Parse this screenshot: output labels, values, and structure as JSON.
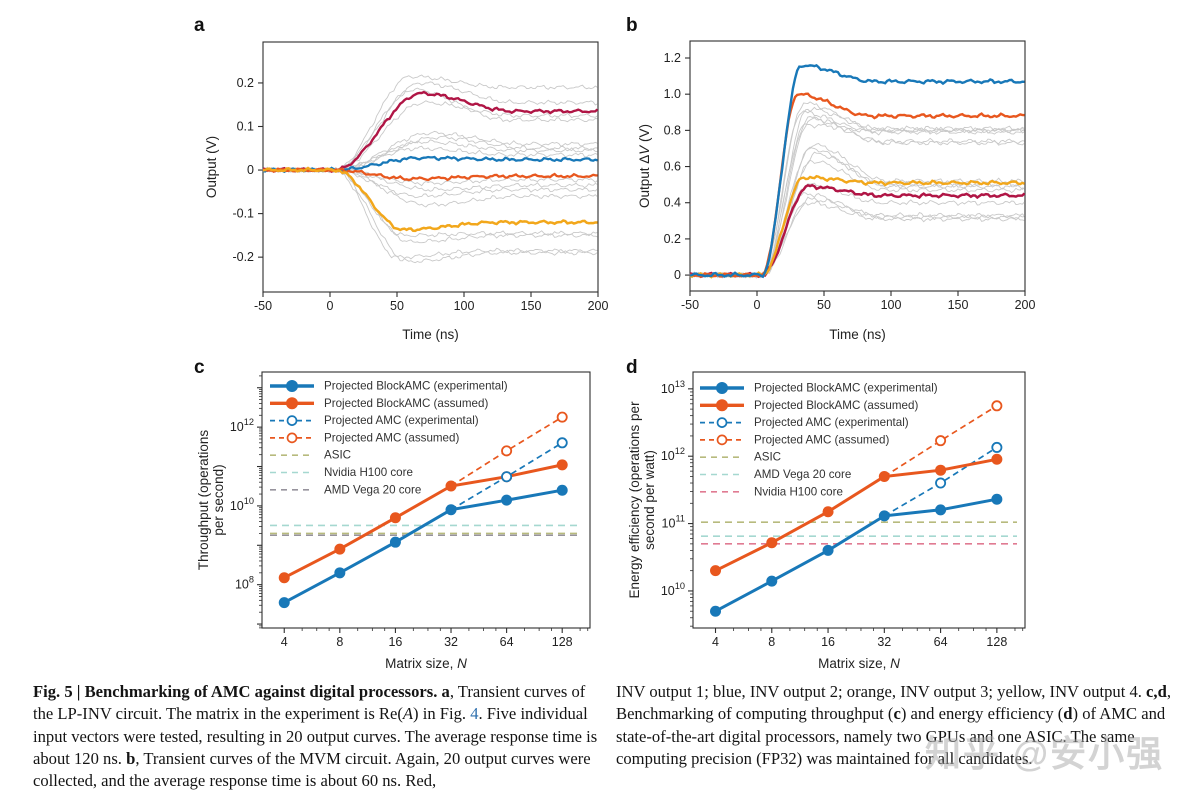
{
  "figure": {
    "panel_letters": [
      "a",
      "b",
      "c",
      "d"
    ]
  },
  "watermark": {
    "text": "知乎 @安小强"
  },
  "caption": {
    "left": [
      {
        "t": "Fig. 5 | Benchmarking of AMC against digital processors. ",
        "b": true
      },
      {
        "t": "a",
        "b": true
      },
      {
        "t": ", Transient curves of the LP-INV circuit. The matrix in the experiment is Re("
      },
      {
        "t": "A",
        "i": true
      },
      {
        "t": ") in Fig. "
      },
      {
        "t": "4",
        "link": true
      },
      {
        "t": ". Five individual input vectors were tested, resulting in 20 output curves. The average response time is about 120 ns. "
      },
      {
        "t": "b",
        "b": true
      },
      {
        "t": ", Transient curves of the MVM circuit. Again, 20 output curves were collected, and the average response time is about 60 ns. Red,"
      }
    ],
    "right": [
      {
        "t": "INV output 1; blue, INV output 2; orange, INV output 3; yellow, INV output 4. "
      },
      {
        "t": "c",
        "b": true
      },
      {
        "t": ",",
        "b": true
      },
      {
        "t": "d",
        "b": true
      },
      {
        "t": ", Benchmarking of computing throughput ("
      },
      {
        "t": "c",
        "b": true
      },
      {
        "t": ") and energy efficiency ("
      },
      {
        "t": "d",
        "b": true
      },
      {
        "t": ") of AMC and state-of-the-art digital processors, namely two GPUs and one ASIC. The same computing precision (FP32) was maintained for all candidates."
      }
    ]
  },
  "chart_data": [
    {
      "id": "a",
      "type": "line",
      "panel_label": "a",
      "xlabel": [
        {
          "t": "Time (ns)"
        }
      ],
      "ylabel": [
        {
          "t": "Output (V)"
        }
      ],
      "xlim": [
        -50,
        200
      ],
      "ylim": [
        -0.28,
        0.294
      ],
      "xticks": [
        -50,
        0,
        50,
        100,
        150,
        200
      ],
      "yticks": [
        -0.2,
        -0.1,
        0,
        0.1,
        0.2
      ],
      "yticklabels": [
        "-0.2",
        "-0.1",
        "0",
        "0.1",
        "0.2"
      ],
      "timing": {
        "t0": 4,
        "fall": 70
      },
      "noise": 0.0045,
      "grey_color": "#c9c9c9",
      "series": [
        {
          "name": "INV output 1",
          "color": "#b01545",
          "peak": 0.176,
          "final": 0.135,
          "tpeak": 68,
          "width": 2.4
        },
        {
          "name": "INV output 2",
          "color": "#1878b8",
          "peak": 0.028,
          "final": 0.024,
          "tpeak": 68,
          "width": 2.3
        },
        {
          "name": "INV output 3",
          "color": "#e8571e",
          "peak": -0.02,
          "final": -0.014,
          "tpeak": 60,
          "width": 2.3
        },
        {
          "name": "INV output 4",
          "color": "#f2a71b",
          "peak": -0.137,
          "final": -0.12,
          "tpeak": 55,
          "width": 2.5
        }
      ],
      "ensemble": [
        [
          0.215,
          0.19,
          60
        ],
        [
          0.2,
          0.155,
          68
        ],
        [
          0.185,
          0.115,
          62
        ],
        [
          0.155,
          0.125,
          70
        ],
        [
          0.085,
          0.06,
          75
        ],
        [
          0.075,
          0.05,
          80
        ],
        [
          0.065,
          0.045,
          70
        ],
        [
          0.05,
          0.035,
          65
        ],
        [
          -0.03,
          -0.022,
          70
        ],
        [
          -0.045,
          -0.035,
          75
        ],
        [
          -0.06,
          -0.045,
          65
        ],
        [
          -0.08,
          -0.06,
          72
        ],
        [
          -0.15,
          -0.145,
          55
        ],
        [
          -0.165,
          -0.15,
          60
        ],
        [
          -0.2,
          -0.185,
          50
        ],
        [
          -0.21,
          -0.19,
          58
        ]
      ]
    },
    {
      "id": "b",
      "type": "line",
      "panel_label": "b",
      "xlabel": [
        {
          "t": "Time (ns)"
        }
      ],
      "ylabel": [
        {
          "t": "Output Δ"
        },
        {
          "t": "V",
          "i": true
        },
        {
          "t": " (V)"
        }
      ],
      "xlim": [
        -50,
        200
      ],
      "ylim": [
        -0.088,
        1.294
      ],
      "xticks": [
        -50,
        0,
        50,
        100,
        150,
        200
      ],
      "yticks": [
        0,
        0.2,
        0.4,
        0.6,
        0.8,
        1.0,
        1.2
      ],
      "yticklabels": [
        "0",
        "0.2",
        "0.4",
        "0.6",
        "0.8",
        "1.0",
        "1.2"
      ],
      "timing": {
        "t0": 4,
        "fall": 55
      },
      "noise": 0.012,
      "grey_color": "#c9c9c9",
      "series": [
        {
          "name": "INV output 1",
          "color": "#b01545",
          "peak": 0.49,
          "final": 0.44,
          "tpeak": 38,
          "width": 2.5
        },
        {
          "name": "INV output 4",
          "color": "#f2a71b",
          "peak": 0.54,
          "final": 0.51,
          "tpeak": 35,
          "width": 2.4
        },
        {
          "name": "INV output 3",
          "color": "#e8571e",
          "peak": 1.0,
          "final": 0.88,
          "tpeak": 30,
          "width": 2.4
        },
        {
          "name": "INV output 2",
          "color": "#1878b8",
          "peak": 1.16,
          "final": 1.07,
          "tpeak": 33,
          "width": 2.4
        }
      ],
      "ensemble": [
        [
          0.95,
          0.81,
          35
        ],
        [
          0.92,
          0.8,
          38
        ],
        [
          0.9,
          0.79,
          33
        ],
        [
          0.86,
          0.73,
          40
        ],
        [
          0.83,
          0.8,
          36
        ],
        [
          0.87,
          0.74,
          39
        ],
        [
          0.72,
          0.52,
          42
        ],
        [
          0.7,
          0.5,
          40
        ],
        [
          0.67,
          0.49,
          44
        ],
        [
          0.63,
          0.47,
          41
        ],
        [
          0.5,
          0.4,
          38
        ],
        [
          0.45,
          0.33,
          36
        ],
        [
          0.42,
          0.32,
          40
        ],
        [
          0.4,
          0.31,
          37
        ]
      ]
    },
    {
      "id": "c",
      "type": "scatter",
      "panel_label": "c",
      "xlabel": [
        {
          "t": "Matrix size, "
        },
        {
          "t": "N",
          "i": true
        }
      ],
      "ylabel_lines": [
        [
          {
            "t": "Throughput (operations"
          }
        ],
        [
          {
            "t": "per second)"
          }
        ]
      ],
      "x": [
        4,
        8,
        16,
        32,
        64,
        128
      ],
      "xlog_lim": [
        1.6,
        7.5
      ],
      "ylog_lim": [
        6.9,
        13.4
      ],
      "ytick_exponents": [
        8,
        10,
        12
      ],
      "series": [
        {
          "name": "Projected BlockAMC (experimental)",
          "style": "solid",
          "color": "#1878b8",
          "values": [
            35000000.0,
            200000000.0,
            1200000000.0,
            8000000000.0,
            14000000000.0,
            25000000000.0
          ]
        },
        {
          "name": "Projected BlockAMC (assumed)",
          "style": "solid",
          "color": "#e8571e",
          "values": [
            150000000.0,
            800000000.0,
            5000000000.0,
            32000000000.0,
            55000000000.0,
            110000000000.0
          ]
        },
        {
          "name": "Projected AMC (experimental)",
          "style": "dashed",
          "color": "#1878b8",
          "values": [
            null,
            null,
            null,
            8000000000.0,
            55000000000.0,
            400000000000.0
          ]
        },
        {
          "name": "Projected AMC (assumed)",
          "style": "dashed",
          "color": "#e8571e",
          "values": [
            null,
            null,
            null,
            32000000000.0,
            250000000000.0,
            1800000000000.0
          ]
        }
      ],
      "hlines": [
        {
          "name": "ASIC",
          "color": "#b7ba7d",
          "value": 2000000000.0
        },
        {
          "name": "Nvidia H100 core",
          "color": "#a5d8d0",
          "value": 3200000000.0
        },
        {
          "name": "AMD Vega 20 core",
          "color": "#97939d",
          "value": 1800000000.0
        }
      ],
      "legend": [
        "Projected BlockAMC (experimental)",
        "Projected BlockAMC (assumed)",
        "Projected AMC (experimental)",
        "Projected AMC (assumed)",
        "ASIC",
        "Nvidia H100 core",
        "AMD Vega 20 core"
      ]
    },
    {
      "id": "d",
      "type": "scatter",
      "panel_label": "d",
      "xlabel": [
        {
          "t": "Matrix size, "
        },
        {
          "t": "N",
          "i": true
        }
      ],
      "ylabel_lines": [
        [
          {
            "t": "Energy efficiency (operations per"
          }
        ],
        [
          {
            "t": "second per watt)"
          }
        ]
      ],
      "x": [
        4,
        8,
        16,
        32,
        64,
        128
      ],
      "xlog_lim": [
        1.6,
        7.5
      ],
      "ylog_lim": [
        9.45,
        13.25
      ],
      "ytick_exponents": [
        10,
        11,
        12,
        13
      ],
      "series": [
        {
          "name": "Projected BlockAMC (experimental)",
          "style": "solid",
          "color": "#1878b8",
          "values": [
            5000000000.0,
            14000000000.0,
            40000000000.0,
            130000000000.0,
            160000000000.0,
            230000000000.0
          ]
        },
        {
          "name": "Projected BlockAMC (assumed)",
          "style": "solid",
          "color": "#e8571e",
          "values": [
            20000000000.0,
            52000000000.0,
            150000000000.0,
            500000000000.0,
            620000000000.0,
            900000000000.0
          ]
        },
        {
          "name": "Projected AMC (experimental)",
          "style": "dashed",
          "color": "#1878b8",
          "values": [
            null,
            null,
            null,
            130000000000.0,
            400000000000.0,
            1350000000000.0
          ]
        },
        {
          "name": "Projected AMC (assumed)",
          "style": "dashed",
          "color": "#e8571e",
          "values": [
            null,
            null,
            null,
            500000000000.0,
            1700000000000.0,
            5600000000000.0
          ]
        }
      ],
      "hlines": [
        {
          "name": "ASIC",
          "color": "#b7ba7d",
          "value": 105000000000.0
        },
        {
          "name": "AMD Vega 20 core",
          "color": "#a5d8d0",
          "value": 65000000000.0
        },
        {
          "name": "Nvidia H100 core",
          "color": "#e07b92",
          "value": 50000000000.0
        }
      ],
      "legend": [
        "Projected BlockAMC (experimental)",
        "Projected BlockAMC (assumed)",
        "Projected AMC (experimental)",
        "Projected AMC (assumed)",
        "ASIC",
        "AMD Vega 20 core",
        "Nvidia H100 core"
      ]
    }
  ]
}
